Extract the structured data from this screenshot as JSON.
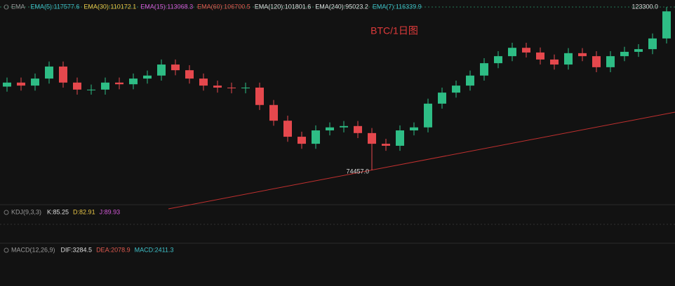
{
  "chart_data": {
    "type": "candlestick",
    "title": "BTC/1日图",
    "ylim": [
      64600,
      125400
    ],
    "up_color": "#2ebd85",
    "down_color": "#e5484d",
    "open": [
      99500,
      100700,
      99800,
      101900,
      105500,
      100700,
      98600,
      98600,
      100700,
      100200,
      101900,
      102800,
      106100,
      104400,
      101900,
      99800,
      99200,
      99000,
      99200,
      94000,
      89300,
      84500,
      82400,
      86400,
      87300,
      87700,
      85600,
      82400,
      81800,
      86400,
      87300,
      94400,
      97700,
      99800,
      102800,
      106500,
      108600,
      111100,
      109700,
      107600,
      106100,
      109500,
      108600,
      105300,
      108600,
      109900,
      110700,
      113900
    ],
    "high": [
      102200,
      102200,
      103400,
      107000,
      107000,
      102200,
      100100,
      102200,
      102200,
      103400,
      104300,
      107600,
      107600,
      105900,
      103400,
      101300,
      100700,
      100700,
      100700,
      95500,
      90800,
      86000,
      87900,
      88800,
      89200,
      89200,
      87100,
      83900,
      87900,
      88800,
      95900,
      99200,
      101300,
      104300,
      108000,
      110100,
      112600,
      112600,
      111200,
      109100,
      111000,
      111000,
      110100,
      110100,
      111400,
      112200,
      115400,
      123300
    ],
    "low": [
      98000,
      98300,
      98300,
      100400,
      99200,
      97100,
      97100,
      97100,
      98700,
      98700,
      100400,
      101300,
      102900,
      100400,
      98300,
      97700,
      97500,
      97500,
      92500,
      87800,
      83000,
      80900,
      80900,
      84900,
      85800,
      84100,
      74457,
      80300,
      80300,
      84900,
      85800,
      92900,
      96200,
      98300,
      101300,
      105000,
      107100,
      108200,
      106100,
      104600,
      104600,
      107100,
      103800,
      103800,
      107100,
      108400,
      109200,
      112400
    ],
    "close": [
      100700,
      99800,
      101900,
      105500,
      100700,
      98600,
      98600,
      100700,
      100200,
      101900,
      102800,
      106100,
      104400,
      101900,
      99800,
      99200,
      99000,
      99200,
      94000,
      89300,
      84500,
      82400,
      86400,
      87300,
      87700,
      85600,
      82400,
      81800,
      86400,
      87300,
      94400,
      97700,
      99800,
      102800,
      106500,
      108600,
      111100,
      109700,
      107600,
      106100,
      109500,
      108600,
      105300,
      108600,
      109900,
      110700,
      113900,
      122000
    ],
    "high_label": {
      "value": 123300,
      "label": "123300.0"
    },
    "low_label": {
      "value": 74457,
      "label": "74457.0"
    }
  },
  "indicators": {
    "ema": {
      "label": "EMA",
      "items": [
        {
          "text": "EMA(5):117577.6",
          "color": "#3fc1c9"
        },
        {
          "text": "EMA(30):110172.1",
          "color": "#e8c547"
        },
        {
          "text": "EMA(15):113068.3",
          "color": "#d45ad8"
        },
        {
          "text": "EMA(60):106700.5",
          "color": "#e05a4f"
        },
        {
          "text": "EMA(120):101801.6",
          "color": "#dddddd"
        },
        {
          "text": "EMA(240):95023.2",
          "color": "#dddddd"
        },
        {
          "text": "EMA(7):116339.9",
          "color": "#3fc1c9"
        }
      ]
    },
    "kdj": {
      "label": "KDJ(9,3,3)",
      "items": [
        {
          "text": "K:85.25",
          "color": "#dddddd"
        },
        {
          "text": "D:82.91",
          "color": "#e8c547"
        },
        {
          "text": "J:89.93",
          "color": "#d45ad8"
        }
      ]
    },
    "macd": {
      "label": "MACD(12,26,9)",
      "items": [
        {
          "text": "DIF:3284.5",
          "color": "#dddddd"
        },
        {
          "text": "DEA:2078.9",
          "color": "#e05a4f"
        },
        {
          "text": "MACD:2411.3",
          "color": "#3fc1c9"
        }
      ]
    }
  }
}
